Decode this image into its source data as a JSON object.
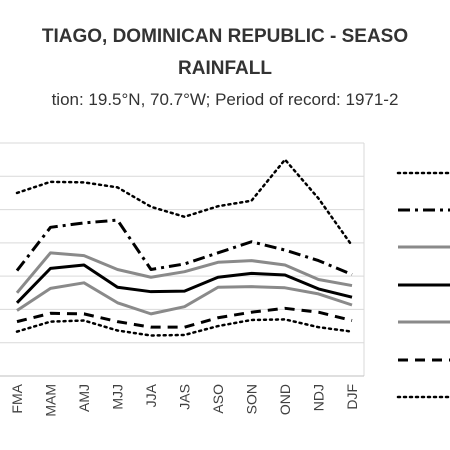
{
  "chart_data": {
    "type": "line",
    "title_line1": "TIAGO, DOMINICAN REPUBLIC - SEASO",
    "title_line2": "RAINFALL",
    "subtitle": "tion: 19.5°N, 70.7°W; Period of record: 1971-2",
    "categories": [
      "FMA",
      "MAM",
      "AMJ",
      "MJJ",
      "JJA",
      "JAS",
      "ASO",
      "SON",
      "OND",
      "NDJ",
      "DJF"
    ],
    "grid": true,
    "legend_position": "right",
    "series": [
      {
        "style": "dotted",
        "color": "#000000",
        "values": [
          330,
          350,
          349,
          340,
          305,
          287,
          306,
          316,
          390,
          320,
          235
        ]
      },
      {
        "style": "dashdot",
        "color": "#000000",
        "values": [
          190,
          268,
          276,
          281,
          192,
          202,
          222,
          242,
          227,
          208,
          183
        ]
      },
      {
        "style": "solid",
        "color": "#8a8a8a",
        "values": [
          150,
          222,
          217,
          192,
          178,
          188,
          205,
          208,
          200,
          174,
          163
        ]
      },
      {
        "style": "solid",
        "color": "#000000",
        "values": [
          132,
          194,
          200,
          160,
          152,
          153,
          178,
          185,
          182,
          157,
          142
        ]
      },
      {
        "style": "solid",
        "color": "#8a8a8a",
        "values": [
          118,
          158,
          168,
          132,
          112,
          125,
          160,
          161,
          159,
          148,
          128
        ]
      },
      {
        "style": "dashdash",
        "color": "#000000",
        "values": [
          98,
          113,
          112,
          98,
          88,
          88,
          105,
          115,
          122,
          115,
          100
        ]
      },
      {
        "style": "dotted",
        "color": "#000000",
        "values": [
          80,
          98,
          100,
          82,
          73,
          74,
          90,
          101,
          102,
          88,
          80
        ]
      }
    ]
  }
}
